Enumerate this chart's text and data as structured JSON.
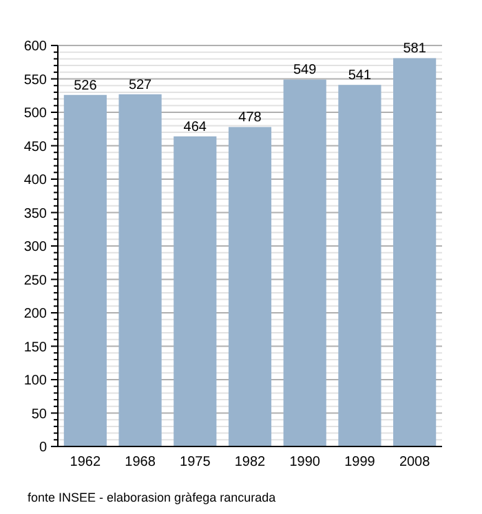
{
  "chart_data": {
    "type": "bar",
    "categories": [
      "1962",
      "1968",
      "1975",
      "1982",
      "1990",
      "1999",
      "2008"
    ],
    "values": [
      526,
      527,
      464,
      478,
      549,
      541,
      581
    ],
    "color": "#98b3cd",
    "data_labels": true,
    "grid": "y",
    "ylim": [
      0,
      600
    ],
    "yticks": [
      0,
      {
        "value": 10,
        "label": null
      },
      {
        "value": 20,
        "label": null
      },
      {
        "value": 30,
        "label": null
      },
      {
        "value": 40,
        "label": null
      },
      50,
      {
        "value": 60,
        "label": null
      },
      {
        "value": 70,
        "label": null
      },
      {
        "value": 80,
        "label": null
      },
      {
        "value": 90,
        "label": null
      },
      100,
      {
        "value": 110,
        "label": null
      },
      {
        "value": 120,
        "label": null
      },
      {
        "value": 130,
        "label": null
      },
      {
        "value": 140,
        "label": null
      },
      150,
      {
        "value": 160,
        "label": null
      },
      {
        "value": 170,
        "label": null
      },
      {
        "value": 180,
        "label": null
      },
      {
        "value": 190,
        "label": null
      },
      200,
      {
        "value": 210,
        "label": null
      },
      {
        "value": 220,
        "label": null
      },
      {
        "value": 230,
        "label": null
      },
      {
        "value": 240,
        "label": null
      },
      250,
      {
        "value": 260,
        "label": null
      },
      {
        "value": 270,
        "label": null
      },
      {
        "value": 280,
        "label": null
      },
      {
        "value": 290,
        "label": null
      },
      300,
      {
        "value": 310,
        "label": null
      },
      {
        "value": 320,
        "label": null
      },
      {
        "value": 330,
        "label": null
      },
      {
        "value": 340,
        "label": null
      },
      350,
      {
        "value": 360,
        "label": null
      },
      {
        "value": 370,
        "label": null
      },
      {
        "value": 380,
        "label": null
      },
      {
        "value": 390,
        "label": null
      },
      400,
      {
        "value": 410,
        "label": null
      },
      {
        "value": 420,
        "label": null
      },
      {
        "value": 430,
        "label": null
      },
      {
        "value": 440,
        "label": null
      },
      450,
      {
        "value": 460,
        "label": null
      },
      {
        "value": 470,
        "label": null
      },
      {
        "value": 480,
        "label": null
      },
      {
        "value": 490,
        "label": null
      },
      500,
      {
        "value": 510,
        "label": null
      },
      {
        "value": 520,
        "label": null
      },
      {
        "value": 530,
        "label": null
      },
      {
        "value": 540,
        "label": null
      },
      550,
      {
        "value": 560,
        "label": null
      },
      {
        "value": 570,
        "label": null
      },
      {
        "value": 580,
        "label": null
      },
      {
        "value": 590,
        "label": null
      },
      600
    ],
    "annotations": [
      "fonte INSEE - elaborasion gràfega rancurada"
    ]
  }
}
